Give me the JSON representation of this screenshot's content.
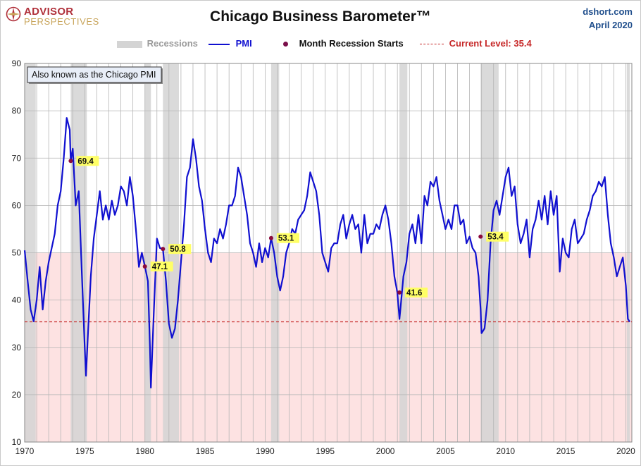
{
  "header": {
    "title": "Chicago Business Barometer™",
    "source": "dshort.com",
    "date": "April 2020",
    "logo_top": "ADVISOR",
    "logo_bottom": "PERSPECTIVES"
  },
  "legend": {
    "recessions": "Recessions",
    "pmi": "PMI",
    "recession_starts": "Month Recession Starts",
    "current_level": "Current Level: 35.4"
  },
  "colors": {
    "pmi_line": "#1010d0",
    "recession_band": "#d4d4d4",
    "below_50_zone": "#fde2e2",
    "current_level_line": "#c62828",
    "recession_start_dot": "#8b0a3c",
    "label_bg": "#ffff66",
    "grid": "#b5b5b5"
  },
  "chart_data": {
    "type": "line",
    "title": "Chicago Business Barometer™",
    "xlabel": "",
    "ylabel": "",
    "xlim": [
      1970,
      2020.5
    ],
    "ylim": [
      10,
      90
    ],
    "y_ticks": [
      10,
      20,
      30,
      40,
      50,
      60,
      70,
      80,
      90
    ],
    "x_ticks": [
      1970,
      1975,
      1980,
      1985,
      1990,
      1995,
      2000,
      2005,
      2010,
      2015,
      2020
    ],
    "x_tick_labels": [
      "1970",
      "1975",
      "1980",
      "1985",
      "1990",
      "1995",
      "2000",
      "2005",
      "2010",
      "2015",
      "2020"
    ],
    "grid": true,
    "legend_position": "top",
    "annotation_box": "Also known as the Chicago PMI",
    "threshold": 50,
    "current_level": 35.4,
    "recessions": [
      {
        "start": 1969.92,
        "end": 1970.92
      },
      {
        "start": 1973.83,
        "end": 1975.17
      },
      {
        "start": 1980.0,
        "end": 1980.5
      },
      {
        "start": 1981.5,
        "end": 1982.83
      },
      {
        "start": 1990.5,
        "end": 1991.17
      },
      {
        "start": 2001.17,
        "end": 2001.83
      },
      {
        "start": 2007.92,
        "end": 2009.42
      },
      {
        "start": 2020.08,
        "end": 2020.33
      }
    ],
    "recession_start_points": [
      {
        "x": 1973.83,
        "y": 69.4,
        "label": "69.4"
      },
      {
        "x": 1980.0,
        "y": 47.1,
        "label": "47.1"
      },
      {
        "x": 1981.5,
        "y": 50.8,
        "label": "50.8"
      },
      {
        "x": 1990.5,
        "y": 53.1,
        "label": "53.1"
      },
      {
        "x": 2001.17,
        "y": 41.6,
        "label": "41.6"
      },
      {
        "x": 2007.92,
        "y": 53.4,
        "label": "53.4"
      }
    ],
    "series": [
      {
        "name": "PMI",
        "x": [
          1970.0,
          1970.25,
          1970.5,
          1970.75,
          1971.0,
          1971.25,
          1971.5,
          1971.75,
          1972.0,
          1972.25,
          1972.5,
          1972.75,
          1973.0,
          1973.25,
          1973.5,
          1973.75,
          1973.83,
          1974.0,
          1974.25,
          1974.5,
          1974.75,
          1975.0,
          1975.1,
          1975.25,
          1975.5,
          1975.75,
          1976.0,
          1976.25,
          1976.5,
          1976.75,
          1977.0,
          1977.25,
          1977.5,
          1977.75,
          1978.0,
          1978.25,
          1978.5,
          1978.75,
          1979.0,
          1979.25,
          1979.5,
          1979.75,
          1980.0,
          1980.25,
          1980.42,
          1980.5,
          1980.75,
          1981.0,
          1981.25,
          1981.5,
          1981.75,
          1982.0,
          1982.25,
          1982.5,
          1982.75,
          1983.0,
          1983.25,
          1983.5,
          1983.75,
          1984.0,
          1984.25,
          1984.5,
          1984.75,
          1985.0,
          1985.25,
          1985.5,
          1985.75,
          1986.0,
          1986.25,
          1986.5,
          1986.75,
          1987.0,
          1987.25,
          1987.5,
          1987.75,
          1988.0,
          1988.25,
          1988.5,
          1988.75,
          1989.0,
          1989.25,
          1989.5,
          1989.75,
          1990.0,
          1990.25,
          1990.5,
          1990.75,
          1991.0,
          1991.25,
          1991.5,
          1991.75,
          1992.0,
          1992.25,
          1992.5,
          1992.75,
          1993.0,
          1993.25,
          1993.5,
          1993.75,
          1994.0,
          1994.25,
          1994.5,
          1994.75,
          1995.0,
          1995.25,
          1995.5,
          1995.75,
          1996.0,
          1996.25,
          1996.5,
          1996.75,
          1997.0,
          1997.25,
          1997.5,
          1997.75,
          1998.0,
          1998.25,
          1998.5,
          1998.75,
          1999.0,
          1999.25,
          1999.5,
          1999.75,
          2000.0,
          2000.25,
          2000.5,
          2000.75,
          2001.0,
          2001.17,
          2001.25,
          2001.5,
          2001.75,
          2002.0,
          2002.25,
          2002.5,
          2002.75,
          2003.0,
          2003.25,
          2003.5,
          2003.75,
          2004.0,
          2004.25,
          2004.5,
          2004.75,
          2005.0,
          2005.25,
          2005.5,
          2005.75,
          2006.0,
          2006.25,
          2006.5,
          2006.75,
          2007.0,
          2007.25,
          2007.5,
          2007.75,
          2007.92,
          2008.0,
          2008.25,
          2008.5,
          2008.75,
          2009.0,
          2009.25,
          2009.5,
          2009.75,
          2010.0,
          2010.25,
          2010.5,
          2010.75,
          2011.0,
          2011.25,
          2011.5,
          2011.75,
          2012.0,
          2012.25,
          2012.5,
          2012.75,
          2013.0,
          2013.25,
          2013.5,
          2013.75,
          2014.0,
          2014.25,
          2014.5,
          2014.75,
          2015.0,
          2015.25,
          2015.5,
          2015.75,
          2016.0,
          2016.25,
          2016.5,
          2016.75,
          2017.0,
          2017.25,
          2017.5,
          2017.75,
          2018.0,
          2018.25,
          2018.5,
          2018.75,
          2019.0,
          2019.25,
          2019.5,
          2019.75,
          2020.0,
          2020.17,
          2020.33
        ],
        "values": [
          50.5,
          44,
          38,
          35.5,
          40,
          47,
          38,
          44,
          48,
          51,
          54,
          60,
          63,
          70,
          78.5,
          76,
          69.4,
          72,
          60,
          63,
          46,
          30,
          24,
          32,
          45,
          53,
          58,
          63,
          57,
          60,
          57,
          61,
          58,
          60,
          64,
          63,
          60,
          66,
          62,
          55,
          47,
          50,
          47.1,
          44,
          30,
          21.5,
          38,
          53,
          51,
          50.8,
          44,
          35,
          32,
          34,
          40,
          48,
          56,
          66,
          68,
          74,
          70,
          64,
          61,
          55,
          50,
          48,
          53,
          52,
          55,
          53,
          56,
          60,
          60,
          62,
          68,
          66,
          62,
          58,
          52,
          50,
          47,
          52,
          48,
          51,
          49,
          53.1,
          50,
          45,
          42,
          45,
          50,
          52,
          55,
          54,
          57,
          58,
          59,
          62,
          67,
          65,
          63,
          58,
          50,
          48,
          46,
          51,
          52,
          52,
          56,
          58,
          53,
          56,
          58,
          55,
          56,
          50,
          58,
          52,
          54,
          54,
          56,
          55,
          58,
          60,
          57,
          52,
          45,
          41.6,
          36,
          38,
          45,
          48,
          54,
          56,
          52,
          58,
          52,
          62,
          60,
          65,
          64,
          66,
          61,
          58,
          55,
          57,
          55,
          60,
          60,
          56,
          57,
          52,
          53.4,
          51,
          50,
          45,
          38,
          33,
          34,
          40,
          52,
          59,
          61,
          58,
          62,
          66,
          68,
          62,
          64,
          56,
          52,
          54,
          57,
          49,
          55,
          57,
          61,
          57,
          62,
          56,
          63,
          58,
          62,
          46,
          53,
          50,
          49,
          55,
          57,
          52,
          53,
          54,
          57,
          59,
          62,
          63,
          65,
          64,
          66,
          58,
          52,
          49,
          45,
          47,
          49,
          43,
          36,
          35.4
        ]
      }
    ]
  }
}
